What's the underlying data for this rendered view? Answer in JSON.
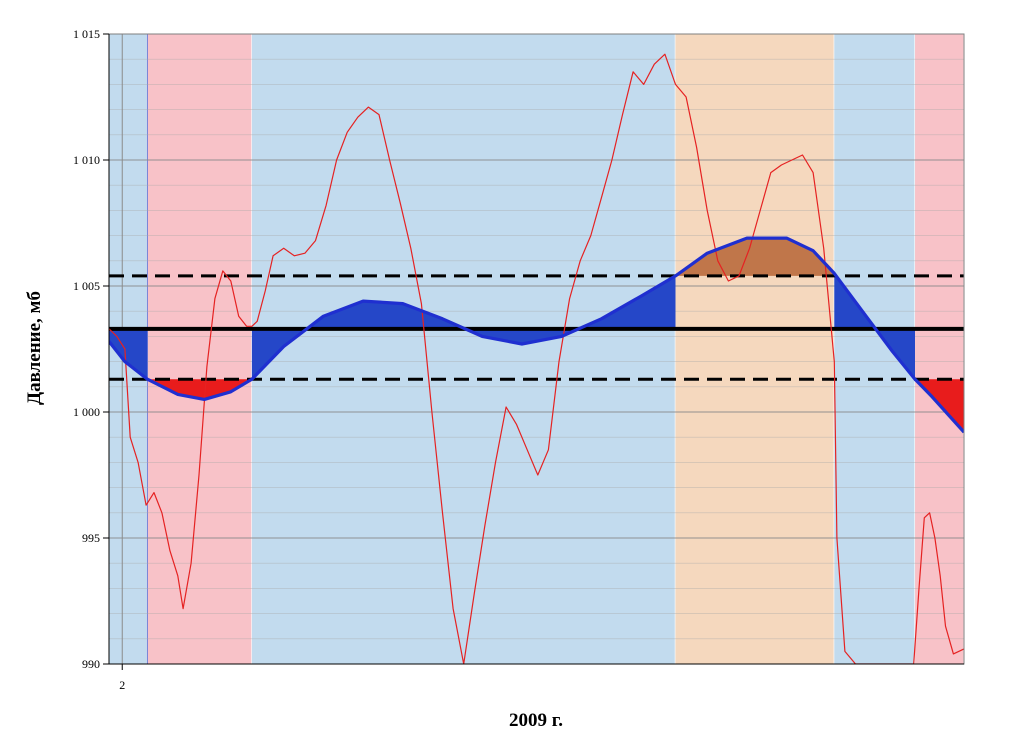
{
  "chart_data": {
    "type": "line",
    "title": "",
    "xlabel": "2009 г.",
    "ylabel": "Давление, мб",
    "ylim": [
      990,
      1015
    ],
    "yticks": [
      990,
      995,
      1000,
      1005,
      1010,
      1015
    ],
    "ytick_labels": [
      "990",
      "995",
      "1 000",
      "1 005",
      "1 010",
      "1 015"
    ],
    "xticks": [
      {
        "x": 1.9,
        "label": "2"
      }
    ],
    "xlim": [
      1.4,
      33.7
    ],
    "grid": true,
    "legend": "none",
    "reference_lines": [
      {
        "name": "mean",
        "y": 1003.3,
        "style": "solid",
        "color": "#000000"
      },
      {
        "name": "upper",
        "y": 1005.4,
        "style": "dashed",
        "color": "#000000"
      },
      {
        "name": "lower",
        "y": 1001.3,
        "style": "dashed",
        "color": "#000000"
      }
    ],
    "bands": [
      {
        "x0": 1.4,
        "x1": 2.85,
        "color": "#c2dbee"
      },
      {
        "x0": 2.85,
        "x1": 6.8,
        "color": "#f8c2c8"
      },
      {
        "x0": 6.8,
        "x1": 22.8,
        "color": "#c2dbee"
      },
      {
        "x0": 22.8,
        "x1": 28.8,
        "color": "#f5d8be"
      },
      {
        "x0": 28.8,
        "x1": 31.85,
        "color": "#c2dbee"
      },
      {
        "x0": 31.85,
        "x1": 33.7,
        "color": "#f8c2c8"
      }
    ],
    "series": [
      {
        "color": "#e52222",
        "x": [
          1.4,
          1.7,
          2.0,
          2.2,
          2.5,
          2.8,
          3.1,
          3.4,
          3.7,
          4.0,
          4.2,
          4.5,
          4.8,
          5.1,
          5.4,
          5.7,
          6.0,
          6.3,
          6.6,
          6.8,
          7.0,
          7.3,
          7.6,
          8.0,
          8.4,
          8.8,
          9.2,
          9.6,
          10.0,
          10.4,
          10.8,
          11.2,
          11.6,
          12.0,
          12.4,
          12.8,
          13.2,
          13.6,
          14.0,
          14.4,
          14.8,
          15.2,
          15.6,
          16.0,
          16.4,
          16.8,
          17.2,
          17.6,
          18.0,
          18.4,
          18.8,
          19.2,
          19.6,
          20.0,
          20.4,
          20.8,
          21.2,
          21.6,
          22.0,
          22.4,
          22.8,
          23.2,
          23.6,
          24.0,
          24.4,
          24.8,
          25.2,
          25.6,
          26.0,
          26.4,
          26.8,
          27.2,
          27.6,
          28.0,
          28.4,
          28.8,
          28.9,
          29.2,
          29.6,
          30.0,
          30.4,
          30.8,
          31.2,
          31.6,
          31.8,
          32.0,
          32.2,
          32.4,
          32.6,
          32.8,
          33.0,
          33.3,
          33.5,
          33.7
        ],
        "values": [
          1003.3,
          1003.0,
          1002.5,
          999.0,
          998.0,
          996.3,
          996.8,
          996.0,
          994.5,
          993.5,
          992.2,
          994.0,
          997.5,
          1001.8,
          1004.5,
          1005.6,
          1005.2,
          1003.8,
          1003.4,
          1003.4,
          1003.6,
          1004.8,
          1006.2,
          1006.5,
          1006.2,
          1006.3,
          1006.8,
          1008.2,
          1010.0,
          1011.1,
          1011.7,
          1012.1,
          1011.8,
          1010.0,
          1008.3,
          1006.5,
          1004.3,
          1000.0,
          996.0,
          992.2,
          990.0,
          992.8,
          995.5,
          998.0,
          1000.2,
          999.5,
          998.5,
          997.5,
          998.5,
          1002.0,
          1004.5,
          1006.0,
          1007.0,
          1008.5,
          1010.0,
          1011.8,
          1013.5,
          1013.0,
          1013.8,
          1014.2,
          1013.0,
          1012.5,
          1010.5,
          1008.0,
          1006.0,
          1005.2,
          1005.4,
          1006.5,
          1008.0,
          1009.5,
          1009.8,
          1010.0,
          1010.2,
          1009.5,
          1006.5,
          1002.0,
          995.0,
          990.5,
          990.0,
          990.0,
          990.0,
          990.0,
          990.0,
          990.0,
          990.0,
          993.0,
          995.8,
          996.0,
          995.0,
          993.5,
          991.5,
          990.4,
          990.5,
          990.6
        ]
      },
      {
        "color": "#1f2fd0",
        "x": [
          1.4,
          2.0,
          2.85,
          4.0,
          5.0,
          6.0,
          6.8,
          8.0,
          9.5,
          11.0,
          12.5,
          14.0,
          15.5,
          17.0,
          18.5,
          20.0,
          21.5,
          22.8,
          24.0,
          25.5,
          27.0,
          28.0,
          28.8,
          30.0,
          31.0,
          31.85,
          32.5,
          33.7
        ],
        "values": [
          1002.8,
          1002.0,
          1001.3,
          1000.7,
          1000.5,
          1000.8,
          1001.3,
          1002.6,
          1003.8,
          1004.4,
          1004.3,
          1003.7,
          1003.0,
          1002.7,
          1003.0,
          1003.7,
          1004.6,
          1005.4,
          1006.3,
          1006.9,
          1006.9,
          1006.4,
          1005.5,
          1003.8,
          1002.4,
          1001.3,
          1000.6,
          999.2
        ]
      }
    ]
  }
}
